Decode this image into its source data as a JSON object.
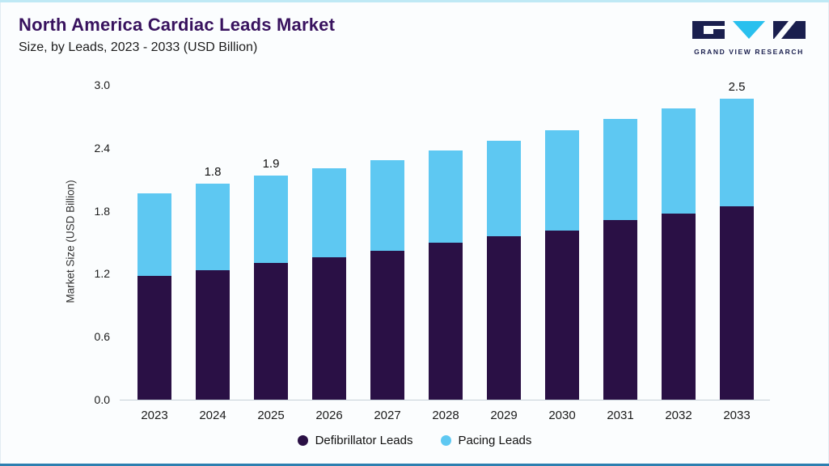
{
  "page": {
    "title": "North America Cardiac Leads Market",
    "subtitle": "Size, by Leads, 2023 - 2033 (USD Billion)",
    "brand": "GRAND VIEW RESEARCH"
  },
  "colors": {
    "title_text": "#38125e",
    "accent_top": "#bfe9f5",
    "accent_bottom": "#2d7fb0",
    "logo_navy": "#1a1f4e",
    "logo_cyan": "#29c0ee",
    "defibrillator": "#2a1045",
    "pacing": "#5ec8f2"
  },
  "chart_data": {
    "type": "bar",
    "stacked": true,
    "title": "North America Cardiac Leads Market",
    "subtitle": "Size, by Leads, 2023 - 2033 (USD Billion)",
    "xlabel": "",
    "ylabel": "Market Size (USD Billion)",
    "ylim": [
      0,
      3.0
    ],
    "yticks": [
      "3.0",
      "2.4",
      "1.8",
      "1.2",
      "0.6",
      "0.0"
    ],
    "grid": false,
    "legend_position": "bottom",
    "categories": [
      "2023",
      "2024",
      "2025",
      "2026",
      "2027",
      "2028",
      "2029",
      "2030",
      "2031",
      "2032",
      "2033"
    ],
    "series": [
      {
        "name": "Defibrillator Leads",
        "color": "#2a1045",
        "values": [
          1.03,
          1.08,
          1.14,
          1.19,
          1.24,
          1.31,
          1.36,
          1.41,
          1.5,
          1.55,
          1.61
        ]
      },
      {
        "name": "Pacing Leads",
        "color": "#5ec8f2",
        "values": [
          0.69,
          0.72,
          0.73,
          0.74,
          0.76,
          0.77,
          0.8,
          0.84,
          0.84,
          0.88,
          0.9
        ]
      }
    ],
    "totals": [
      1.72,
      1.8,
      1.87,
      1.93,
      2.0,
      2.08,
      2.16,
      2.25,
      2.34,
      2.43,
      2.51
    ],
    "bar_value_labels": {
      "2024": "1.8",
      "2025": "1.9",
      "2033": "2.5"
    }
  }
}
